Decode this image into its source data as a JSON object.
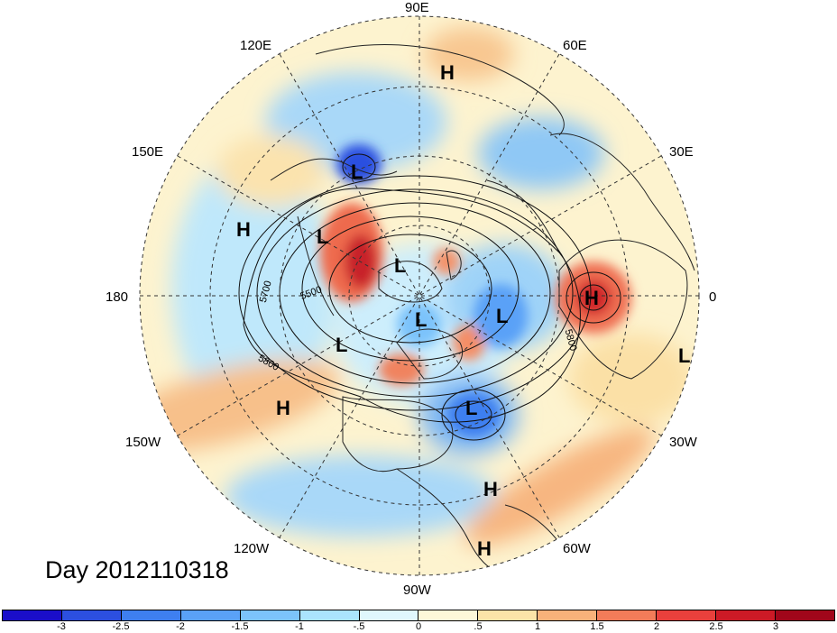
{
  "title": "Day 2012110318",
  "longitude_labels": [
    {
      "id": "lon-90e",
      "text": "90E"
    },
    {
      "id": "lon-60e",
      "text": "60E"
    },
    {
      "id": "lon-120e",
      "text": "120E"
    },
    {
      "id": "lon-150e",
      "text": "150E"
    },
    {
      "id": "lon-30e",
      "text": "30E"
    },
    {
      "id": "lon-180",
      "text": "180"
    },
    {
      "id": "lon-0",
      "text": "0"
    },
    {
      "id": "lon-150w",
      "text": "150W"
    },
    {
      "id": "lon-30w",
      "text": "30W"
    },
    {
      "id": "lon-120w",
      "text": "120W"
    },
    {
      "id": "lon-60w",
      "text": "60W"
    },
    {
      "id": "lon-90w",
      "text": "90W"
    }
  ],
  "pressure_centers": [
    {
      "type": "H"
    },
    {
      "type": "L"
    },
    {
      "type": "H"
    },
    {
      "type": "L"
    },
    {
      "type": "L"
    },
    {
      "type": "H"
    },
    {
      "type": "L"
    },
    {
      "type": "L"
    },
    {
      "type": "L"
    },
    {
      "type": "L"
    },
    {
      "type": "H"
    },
    {
      "type": "L"
    },
    {
      "type": "H"
    },
    {
      "type": "H"
    }
  ],
  "contour_labels": [
    "5700",
    "5500",
    "5800",
    "5800"
  ],
  "colorbar": {
    "colors": [
      "#1a0ec9",
      "#2c4fe0",
      "#3e7ff0",
      "#5aa1f7",
      "#7cc3fb",
      "#aae4fd",
      "#e0f7fd",
      "#fdf8d9",
      "#fbe4a8",
      "#f8b27a",
      "#f27c59",
      "#e9403c",
      "#cc1a26",
      "#a0061a"
    ],
    "ticks": [
      "-3",
      "-2.5",
      "-2",
      "-1.5",
      "-1",
      "-.5",
      "0",
      ".5",
      "1",
      "1.5",
      "2",
      "2.5",
      "3"
    ]
  },
  "chart_data": {
    "type": "heatmap",
    "title": "Day 2012110318",
    "projection": "north polar stereographic",
    "colorbar_range": [
      -3,
      3
    ],
    "colorbar_interval": 0.5,
    "contour_levels_labeled": [
      5500,
      5700,
      5800
    ]
  }
}
